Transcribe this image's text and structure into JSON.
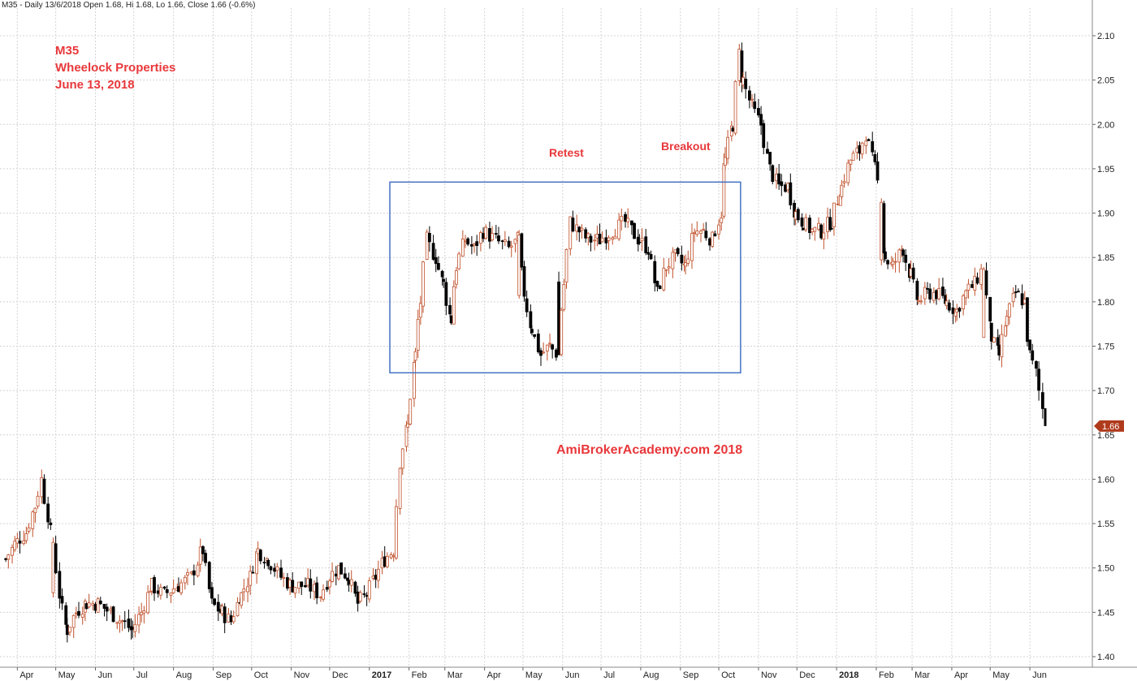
{
  "header": "M35 - Daily 13/6/2018 Open 1.68, Hi 1.68, Lo 1.66, Close 1.66 (-0.6%)",
  "annotations": {
    "symbol": "M35",
    "company": "Wheelock Properties",
    "date": "June 13, 2018",
    "retest": "Retest",
    "breakout": "Breakout",
    "watermark": "AmiBrokerAcademy.com  2018"
  },
  "colors": {
    "up_candle": "#c0502a",
    "down_candle": "#000000",
    "box": "#4472c4",
    "annotation": "#e8383b",
    "grid": "#d4d4d4",
    "price_tag": "#b03a1c"
  },
  "chart_data": {
    "type": "candlestick",
    "title": "M35 - Daily 13/6/2018 Open 1.68, Hi 1.68, Lo 1.66, Close 1.66 (-0.6%)",
    "ylim": [
      1.395,
      2.125
    ],
    "grid": true,
    "y_ticks": [
      "1.40",
      "1.45",
      "1.50",
      "1.55",
      "1.60",
      "1.65",
      "1.70",
      "1.75",
      "1.80",
      "1.85",
      "1.90",
      "1.95",
      "2.00",
      "2.05",
      "2.10"
    ],
    "x_ticks": [
      {
        "label": "Apr",
        "date": "2016-04-01"
      },
      {
        "label": "May",
        "date": "2016-05-01"
      },
      {
        "label": "Jun",
        "date": "2016-06-01"
      },
      {
        "label": "Jul",
        "date": "2016-07-01"
      },
      {
        "label": "Aug",
        "date": "2016-08-01"
      },
      {
        "label": "Sep",
        "date": "2016-09-01"
      },
      {
        "label": "Oct",
        "date": "2016-10-01"
      },
      {
        "label": "Nov",
        "date": "2016-11-01"
      },
      {
        "label": "Dec",
        "date": "2016-12-01"
      },
      {
        "label": "2017",
        "date": "2017-01-01",
        "bold": true
      },
      {
        "label": "Feb",
        "date": "2017-02-01"
      },
      {
        "label": "Mar",
        "date": "2017-03-01"
      },
      {
        "label": "Apr",
        "date": "2017-04-01"
      },
      {
        "label": "May",
        "date": "2017-05-01"
      },
      {
        "label": "Jun",
        "date": "2017-06-01"
      },
      {
        "label": "Jul",
        "date": "2017-07-01"
      },
      {
        "label": "Aug",
        "date": "2017-08-01"
      },
      {
        "label": "Sep",
        "date": "2017-09-01"
      },
      {
        "label": "Oct",
        "date": "2017-10-01"
      },
      {
        "label": "Nov",
        "date": "2017-11-01"
      },
      {
        "label": "Dec",
        "date": "2017-12-01"
      },
      {
        "label": "2018",
        "date": "2018-01-01",
        "bold": true
      },
      {
        "label": "Feb",
        "date": "2018-02-01"
      },
      {
        "label": "Mar",
        "date": "2018-03-01"
      },
      {
        "label": "Apr",
        "date": "2018-04-01"
      },
      {
        "label": "May",
        "date": "2018-05-01"
      },
      {
        "label": "Jun",
        "date": "2018-06-01"
      }
    ],
    "approx_closes": [
      {
        "date": "2016-03-23",
        "close": 1.51
      },
      {
        "date": "2016-04-01",
        "close": 1.53
      },
      {
        "date": "2016-04-08",
        "close": 1.54
      },
      {
        "date": "2016-04-15",
        "close": 1.57
      },
      {
        "date": "2016-04-20",
        "close": 1.6
      },
      {
        "date": "2016-04-25",
        "close": 1.56
      },
      {
        "date": "2016-04-29",
        "close": 1.53
      },
      {
        "date": "2016-05-04",
        "close": 1.47
      },
      {
        "date": "2016-05-10",
        "close": 1.43
      },
      {
        "date": "2016-05-17",
        "close": 1.45
      },
      {
        "date": "2016-05-25",
        "close": 1.46
      },
      {
        "date": "2016-06-03",
        "close": 1.46
      },
      {
        "date": "2016-06-13",
        "close": 1.45
      },
      {
        "date": "2016-06-22",
        "close": 1.44
      },
      {
        "date": "2016-06-30",
        "close": 1.43
      },
      {
        "date": "2016-07-07",
        "close": 1.45
      },
      {
        "date": "2016-07-15",
        "close": 1.48
      },
      {
        "date": "2016-07-25",
        "close": 1.47
      },
      {
        "date": "2016-08-05",
        "close": 1.48
      },
      {
        "date": "2016-08-15",
        "close": 1.49
      },
      {
        "date": "2016-08-24",
        "close": 1.52
      },
      {
        "date": "2016-08-31",
        "close": 1.46
      },
      {
        "date": "2016-09-08",
        "close": 1.45
      },
      {
        "date": "2016-09-15",
        "close": 1.44
      },
      {
        "date": "2016-09-23",
        "close": 1.47
      },
      {
        "date": "2016-09-30",
        "close": 1.49
      },
      {
        "date": "2016-10-06",
        "close": 1.52
      },
      {
        "date": "2016-10-14",
        "close": 1.51
      },
      {
        "date": "2016-10-24",
        "close": 1.49
      },
      {
        "date": "2016-11-02",
        "close": 1.48
      },
      {
        "date": "2016-11-14",
        "close": 1.48
      },
      {
        "date": "2016-11-24",
        "close": 1.47
      },
      {
        "date": "2016-12-01",
        "close": 1.49
      },
      {
        "date": "2016-12-08",
        "close": 1.5
      },
      {
        "date": "2016-12-16",
        "close": 1.49
      },
      {
        "date": "2016-12-23",
        "close": 1.46
      },
      {
        "date": "2016-12-30",
        "close": 1.47
      },
      {
        "date": "2017-01-06",
        "close": 1.49
      },
      {
        "date": "2017-01-13",
        "close": 1.51
      },
      {
        "date": "2017-01-20",
        "close": 1.52
      },
      {
        "date": "2017-01-25",
        "close": 1.62
      },
      {
        "date": "2017-01-31",
        "close": 1.66
      },
      {
        "date": "2017-02-06",
        "close": 1.74
      },
      {
        "date": "2017-02-10",
        "close": 1.8
      },
      {
        "date": "2017-02-15",
        "close": 1.87
      },
      {
        "date": "2017-02-22",
        "close": 1.85
      },
      {
        "date": "2017-02-28",
        "close": 1.82
      },
      {
        "date": "2017-03-06",
        "close": 1.78
      },
      {
        "date": "2017-03-10",
        "close": 1.84
      },
      {
        "date": "2017-03-17",
        "close": 1.87
      },
      {
        "date": "2017-03-24",
        "close": 1.86
      },
      {
        "date": "2017-03-31",
        "close": 1.88
      },
      {
        "date": "2017-04-10",
        "close": 1.87
      },
      {
        "date": "2017-04-20",
        "close": 1.86
      },
      {
        "date": "2017-04-28",
        "close": 1.87
      },
      {
        "date": "2017-05-02",
        "close": 1.81
      },
      {
        "date": "2017-05-08",
        "close": 1.77
      },
      {
        "date": "2017-05-15",
        "close": 1.74
      },
      {
        "date": "2017-05-22",
        "close": 1.75
      },
      {
        "date": "2017-05-29",
        "close": 1.74
      },
      {
        "date": "2017-06-02",
        "close": 1.82
      },
      {
        "date": "2017-06-07",
        "close": 1.89
      },
      {
        "date": "2017-06-14",
        "close": 1.88
      },
      {
        "date": "2017-06-21",
        "close": 1.87
      },
      {
        "date": "2017-06-30",
        "close": 1.87
      },
      {
        "date": "2017-07-10",
        "close": 1.88
      },
      {
        "date": "2017-07-20",
        "close": 1.89
      },
      {
        "date": "2017-07-31",
        "close": 1.87
      },
      {
        "date": "2017-08-07",
        "close": 1.86
      },
      {
        "date": "2017-08-14",
        "close": 1.81
      },
      {
        "date": "2017-08-21",
        "close": 1.84
      },
      {
        "date": "2017-08-28",
        "close": 1.85
      },
      {
        "date": "2017-09-05",
        "close": 1.84
      },
      {
        "date": "2017-09-12",
        "close": 1.88
      },
      {
        "date": "2017-09-19",
        "close": 1.88
      },
      {
        "date": "2017-09-26",
        "close": 1.87
      },
      {
        "date": "2017-10-03",
        "close": 1.9
      },
      {
        "date": "2017-10-06",
        "close": 1.96
      },
      {
        "date": "2017-10-12",
        "close": 2.0
      },
      {
        "date": "2017-10-17",
        "close": 2.08
      },
      {
        "date": "2017-10-20",
        "close": 2.05
      },
      {
        "date": "2017-10-27",
        "close": 2.02
      },
      {
        "date": "2017-11-03",
        "close": 2.0
      },
      {
        "date": "2017-11-10",
        "close": 1.95
      },
      {
        "date": "2017-11-17",
        "close": 1.93
      },
      {
        "date": "2017-11-24",
        "close": 1.93
      },
      {
        "date": "2017-11-30",
        "close": 1.9
      },
      {
        "date": "2017-12-06",
        "close": 1.89
      },
      {
        "date": "2017-12-13",
        "close": 1.88
      },
      {
        "date": "2017-12-20",
        "close": 1.88
      },
      {
        "date": "2017-12-28",
        "close": 1.89
      },
      {
        "date": "2018-01-05",
        "close": 1.93
      },
      {
        "date": "2018-01-12",
        "close": 1.96
      },
      {
        "date": "2018-01-19",
        "close": 1.97
      },
      {
        "date": "2018-01-24",
        "close": 1.99
      },
      {
        "date": "2018-01-31",
        "close": 1.95
      },
      {
        "date": "2018-02-05",
        "close": 1.92
      },
      {
        "date": "2018-02-08",
        "close": 1.85
      },
      {
        "date": "2018-02-14",
        "close": 1.84
      },
      {
        "date": "2018-02-22",
        "close": 1.86
      },
      {
        "date": "2018-02-28",
        "close": 1.83
      },
      {
        "date": "2018-03-06",
        "close": 1.8
      },
      {
        "date": "2018-03-13",
        "close": 1.81
      },
      {
        "date": "2018-03-20",
        "close": 1.81
      },
      {
        "date": "2018-03-28",
        "close": 1.8
      },
      {
        "date": "2018-04-05",
        "close": 1.79
      },
      {
        "date": "2018-04-12",
        "close": 1.81
      },
      {
        "date": "2018-04-19",
        "close": 1.82
      },
      {
        "date": "2018-04-26",
        "close": 1.84
      },
      {
        "date": "2018-05-02",
        "close": 1.76
      },
      {
        "date": "2018-05-08",
        "close": 1.74
      },
      {
        "date": "2018-05-14",
        "close": 1.78
      },
      {
        "date": "2018-05-21",
        "close": 1.81
      },
      {
        "date": "2018-05-28",
        "close": 1.8
      },
      {
        "date": "2018-06-01",
        "close": 1.74
      },
      {
        "date": "2018-06-06",
        "close": 1.72
      },
      {
        "date": "2018-06-11",
        "close": 1.68
      },
      {
        "date": "2018-06-13",
        "close": 1.66
      }
    ],
    "last_price_label": "1.66",
    "consolidation_box": {
      "date_start": "2017-01-17",
      "date_end": "2017-10-18",
      "low": 1.72,
      "high": 1.935
    }
  }
}
